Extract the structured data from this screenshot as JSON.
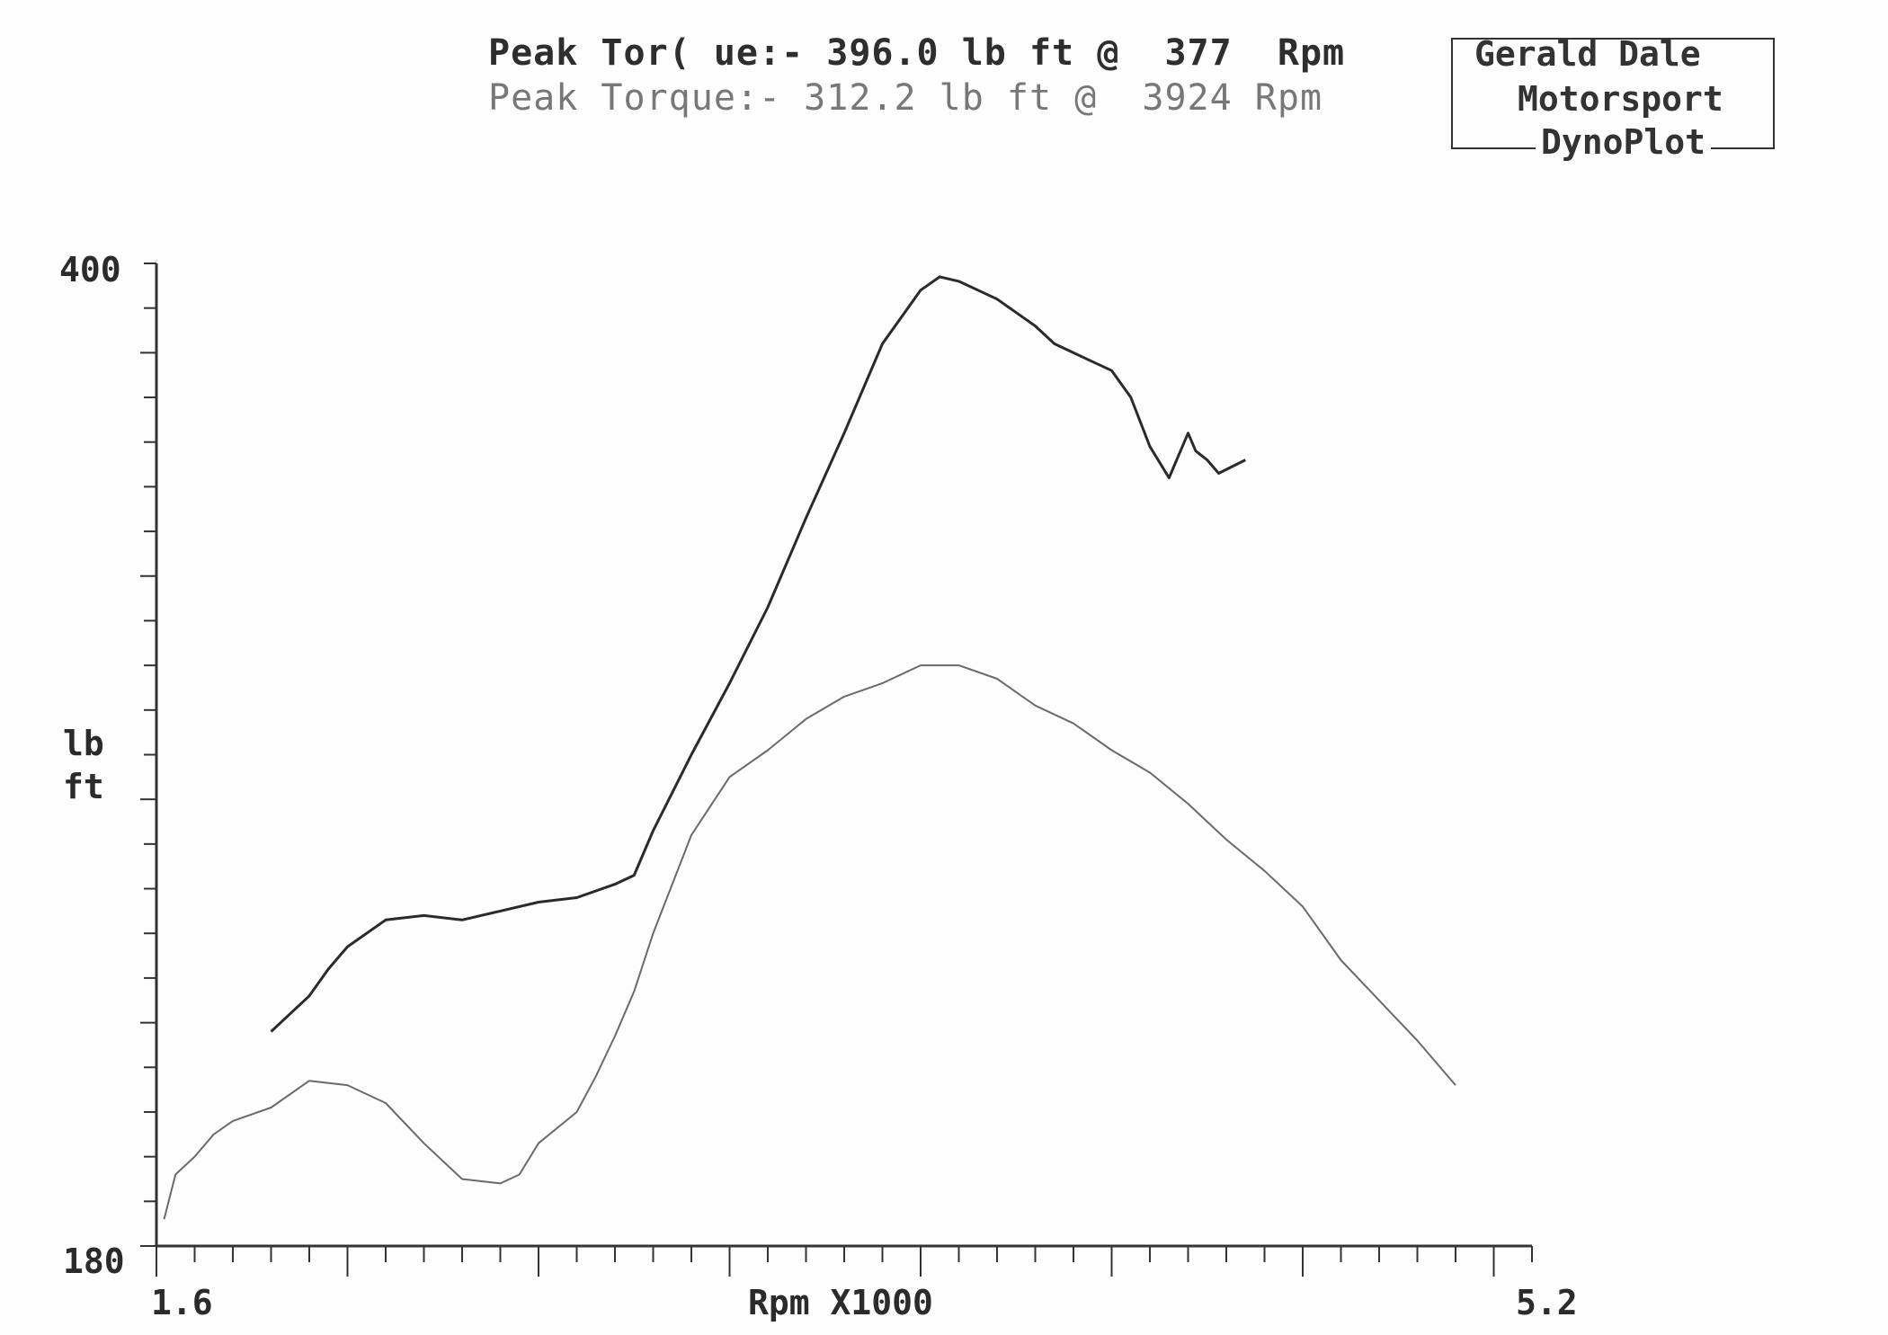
{
  "header": {
    "peak_line_1": "Peak Tor( ue:- 396.0 lb ft @  377  Rpm",
    "peak_line_2": "Peak Torque:- 312.2 lb ft @  3924 Rpm"
  },
  "brand": {
    "line1": "Gerald Dale",
    "line2": "Motorsport",
    "line3": "DynoPlot"
  },
  "colors": {
    "series_1": "#2a2a2a",
    "series_2": "#6a6a6a",
    "axis": "#333333"
  },
  "chart_data": {
    "type": "line",
    "xlabel": "Rpm X1000",
    "ylabel_line1": "lb",
    "ylabel_line2": "ft",
    "xlim": [
      1.6,
      5.2
    ],
    "ylim": [
      180,
      400
    ],
    "x_tick_labels": [
      "1.6",
      "5.2"
    ],
    "y_tick_labels": [
      "180",
      "400"
    ],
    "y_minor_tick_count": 22,
    "x_minor_tick_count": 36,
    "grid": false,
    "series": [
      {
        "x": [
          1.9,
          1.95,
          2.0,
          2.05,
          2.1,
          2.2,
          2.3,
          2.4,
          2.5,
          2.6,
          2.7,
          2.8,
          2.85,
          2.9,
          3.0,
          3.1,
          3.2,
          3.3,
          3.4,
          3.5,
          3.6,
          3.65,
          3.7,
          3.75,
          3.8,
          3.85,
          3.9,
          3.95,
          4.0,
          4.05,
          4.1,
          4.15,
          4.2,
          4.25,
          4.3,
          4.32,
          4.35,
          4.38,
          4.45
        ],
        "y": [
          228,
          232,
          236,
          242,
          247,
          253,
          254,
          253,
          255,
          257,
          258,
          261,
          263,
          273,
          290,
          306,
          323,
          343,
          362,
          382,
          394,
          397,
          396,
          394,
          392,
          389,
          386,
          382,
          380,
          378,
          376,
          370,
          359,
          352,
          362,
          358,
          356,
          353,
          356
        ]
      },
      {
        "x": [
          1.62,
          1.65,
          1.7,
          1.75,
          1.8,
          1.9,
          2.0,
          2.1,
          2.2,
          2.3,
          2.4,
          2.5,
          2.55,
          2.6,
          2.7,
          2.75,
          2.8,
          2.85,
          2.9,
          3.0,
          3.1,
          3.2,
          3.3,
          3.4,
          3.5,
          3.6,
          3.7,
          3.8,
          3.9,
          4.0,
          4.1,
          4.2,
          4.3,
          4.4,
          4.5,
          4.6,
          4.7,
          4.8,
          4.9,
          5.0
        ],
        "y": [
          186,
          196,
          200,
          205,
          208,
          211,
          217,
          216,
          212,
          203,
          195,
          194,
          196,
          203,
          210,
          218,
          227,
          237,
          250,
          272,
          285,
          291,
          298,
          303,
          306,
          310,
          310,
          307,
          301,
          297,
          291,
          286,
          279,
          271,
          264,
          256,
          244,
          235,
          226,
          216
        ]
      }
    ]
  }
}
